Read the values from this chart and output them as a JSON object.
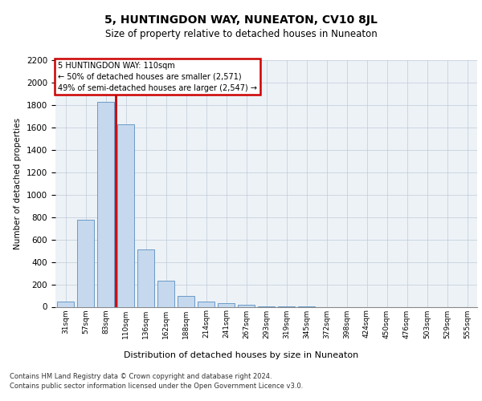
{
  "title": "5, HUNTINGDON WAY, NUNEATON, CV10 8JL",
  "subtitle": "Size of property relative to detached houses in Nuneaton",
  "xlabel": "Distribution of detached houses by size in Nuneaton",
  "ylabel": "Number of detached properties",
  "categories": [
    "31sqm",
    "57sqm",
    "83sqm",
    "110sqm",
    "136sqm",
    "162sqm",
    "188sqm",
    "214sqm",
    "241sqm",
    "267sqm",
    "293sqm",
    "319sqm",
    "345sqm",
    "372sqm",
    "398sqm",
    "424sqm",
    "450sqm",
    "476sqm",
    "503sqm",
    "529sqm",
    "555sqm"
  ],
  "values": [
    50,
    775,
    1825,
    1625,
    510,
    230,
    100,
    50,
    30,
    15,
    5,
    2,
    1,
    0,
    0,
    0,
    0,
    0,
    0,
    0,
    0
  ],
  "bar_color": "#c5d8ed",
  "bar_edgecolor": "#5a8fc0",
  "vline_x": 2.5,
  "vline_color": "#cc0000",
  "ylim": [
    0,
    2200
  ],
  "yticks": [
    0,
    200,
    400,
    600,
    800,
    1000,
    1200,
    1400,
    1600,
    1800,
    2000,
    2200
  ],
  "annotation_title": "5 HUNTINGDON WAY: 110sqm",
  "annotation_line1": "← 50% of detached houses are smaller (2,571)",
  "annotation_line2": "49% of semi-detached houses are larger (2,547) →",
  "annotation_box_edgecolor": "#cc0000",
  "footer1": "Contains HM Land Registry data © Crown copyright and database right 2024.",
  "footer2": "Contains public sector information licensed under the Open Government Licence v3.0.",
  "plot_bg_color": "#edf2f7",
  "grid_color": "#c0cbd6"
}
